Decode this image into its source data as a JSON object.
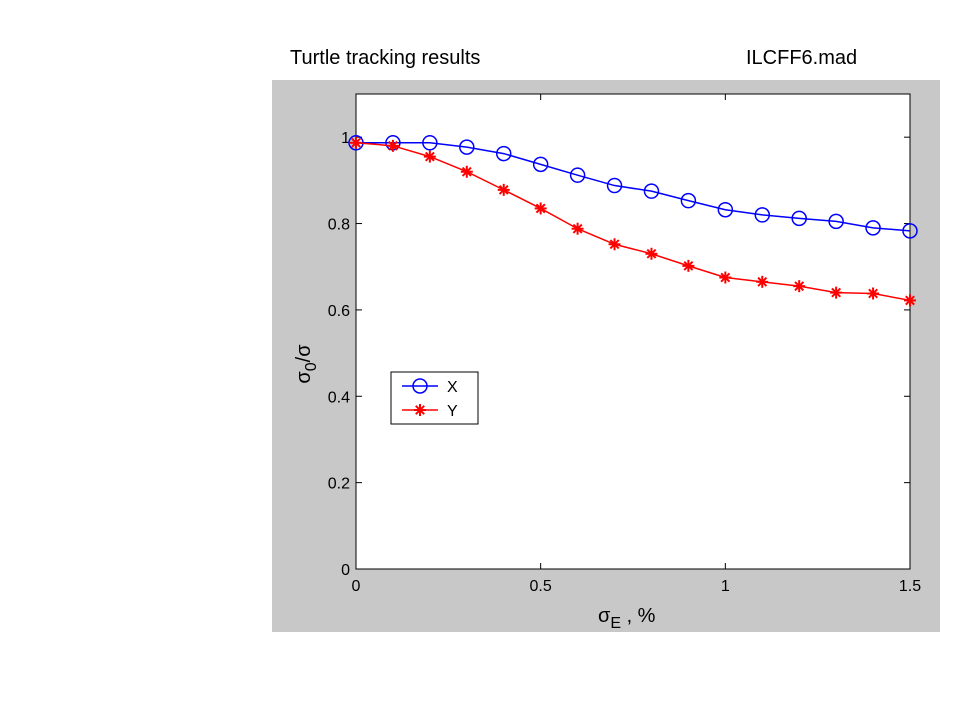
{
  "header": {
    "left_title": "Turtle tracking results",
    "right_title": "ILCFF6.mad"
  },
  "colors": {
    "figure_background": "#c8c8c8",
    "axes_background": "#ffffff",
    "series_x": "#0000ff",
    "series_y": "#ff0000"
  },
  "chart_data": {
    "type": "line",
    "xlabel_symbol": "σ",
    "xlabel_subscript": "E",
    "xlabel_suffix": " , %",
    "ylabel_symbol": "σ",
    "ylabel_subscript": "0",
    "ylabel_suffix": "/σ",
    "xlim": [
      0,
      1.5
    ],
    "ylim": [
      0,
      1.1
    ],
    "xticks": [
      0,
      0.5,
      1,
      1.5
    ],
    "xtick_labels": [
      "0",
      "0.5",
      "1",
      "1.5"
    ],
    "yticks": [
      0,
      0.2,
      0.4,
      0.6,
      0.8,
      1
    ],
    "ytick_labels": [
      "0",
      "0.2",
      "0.4",
      "0.6",
      "0.8",
      "1"
    ],
    "grid": false,
    "legend_position": "center-left",
    "x": [
      0,
      0.1,
      0.2,
      0.3,
      0.4,
      0.5,
      0.6,
      0.7,
      0.8,
      0.9,
      1.0,
      1.1,
      1.2,
      1.3,
      1.4,
      1.5
    ],
    "series": [
      {
        "name": "X",
        "marker": "circle",
        "color": "#0000ff",
        "values": [
          0.987,
          0.987,
          0.987,
          0.977,
          0.962,
          0.937,
          0.912,
          0.888,
          0.875,
          0.853,
          0.832,
          0.82,
          0.812,
          0.805,
          0.79,
          0.783
        ]
      },
      {
        "name": "Y",
        "marker": "asterisk",
        "color": "#ff0000",
        "values": [
          0.987,
          0.98,
          0.955,
          0.92,
          0.878,
          0.835,
          0.788,
          0.752,
          0.73,
          0.702,
          0.675,
          0.665,
          0.655,
          0.64,
          0.638,
          0.622
        ]
      }
    ]
  }
}
